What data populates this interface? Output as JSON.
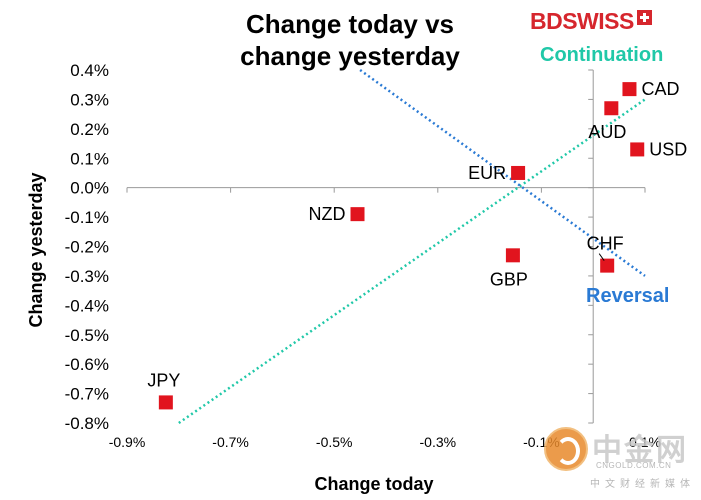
{
  "chart_data": {
    "type": "scatter",
    "title": [
      "Change today vs",
      "change yesterday"
    ],
    "xlabel": "Change today",
    "ylabel": "Change yesterday",
    "xlim": [
      -0.9,
      0.1
    ],
    "ylim": [
      -0.8,
      0.4
    ],
    "x_ticks": [
      -0.9,
      -0.7,
      -0.5,
      -0.3,
      -0.1,
      0.1
    ],
    "x_tick_labels": [
      "-0.9%",
      "-0.7%",
      "-0.5%",
      "-0.3%",
      "-0.1%",
      "0.1%"
    ],
    "y_ticks": [
      0.4,
      0.3,
      0.2,
      0.1,
      0.0,
      -0.1,
      -0.2,
      -0.3,
      -0.4,
      -0.5,
      -0.6,
      -0.7,
      -0.8
    ],
    "y_tick_labels": [
      "0.4%",
      "0.3%",
      "0.2%",
      "0.1%",
      "0.0%",
      "-0.1%",
      "-0.2%",
      "-0.3%",
      "-0.4%",
      "-0.5%",
      "-0.6%",
      "-0.7%",
      "-0.8%"
    ],
    "grid": false,
    "marker_color": "#e1141e",
    "points": [
      {
        "label": "CAD",
        "x": 0.07,
        "y": 0.335,
        "label_pos": "right"
      },
      {
        "label": "AUD",
        "x": 0.035,
        "y": 0.27,
        "label_pos": "below"
      },
      {
        "label": "USD",
        "x": 0.085,
        "y": 0.13,
        "label_pos": "right"
      },
      {
        "label": "EUR",
        "x": -0.145,
        "y": 0.05,
        "label_pos": "left"
      },
      {
        "label": "NZD",
        "x": -0.455,
        "y": -0.09,
        "label_pos": "left"
      },
      {
        "label": "GBP",
        "x": -0.155,
        "y": -0.23,
        "label_pos": "below"
      },
      {
        "label": "CHF",
        "x": 0.027,
        "y": -0.265,
        "label_pos": "above"
      },
      {
        "label": "JPY",
        "x": -0.825,
        "y": -0.73,
        "label_pos": "above"
      }
    ],
    "reference_lines": [
      {
        "name": "Continuation",
        "color": "#20c8a8",
        "from": [
          -0.8,
          -0.8
        ],
        "to": [
          0.1,
          0.3
        ]
      },
      {
        "name": "Reversal",
        "color": "#2a7ad4",
        "from": [
          -0.45,
          0.4
        ],
        "to": [
          0.1,
          -0.3
        ]
      }
    ],
    "annotations": [
      {
        "text": "Continuation",
        "color": "#20c8a8"
      },
      {
        "text": "Reversal",
        "color": "#2a7ad4"
      }
    ]
  },
  "brand": {
    "logo_text": "BDSWISS"
  },
  "watermark": {
    "cn": "中金网",
    "url": "CNGOLD.COM.CN",
    "sub": "中文财经新媒体"
  }
}
